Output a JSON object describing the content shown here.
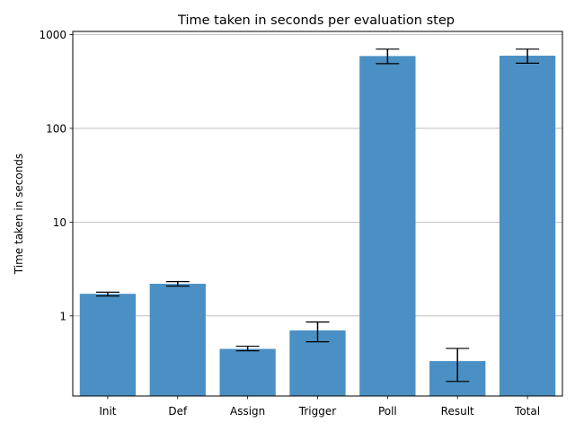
{
  "chart_data": {
    "type": "bar",
    "title": "Time taken in seconds per evaluation step",
    "xlabel": "",
    "ylabel": "Time taken in seconds",
    "yscale": "log",
    "ylim": [
      0.14,
      1080
    ],
    "yticks": [
      1,
      10,
      100,
      1000
    ],
    "ytick_labels": [
      "1",
      "10",
      "100",
      "1000"
    ],
    "grid": "y-major",
    "legend": "none",
    "colors": {
      "bar": "#4a90c4",
      "error_bar": "#000000",
      "grid": "#b0b0b0",
      "axis": "#000000"
    },
    "categories": [
      "Init",
      "Def",
      "Assign",
      "Trigger",
      "Poll",
      "Result",
      "Total"
    ],
    "values": [
      1.72,
      2.2,
      0.445,
      0.7,
      590,
      0.33,
      595
    ],
    "error_low": [
      1.63,
      2.08,
      0.425,
      0.53,
      490,
      0.2,
      495
    ],
    "error_high": [
      1.79,
      2.32,
      0.475,
      0.86,
      700,
      0.45,
      700
    ]
  }
}
